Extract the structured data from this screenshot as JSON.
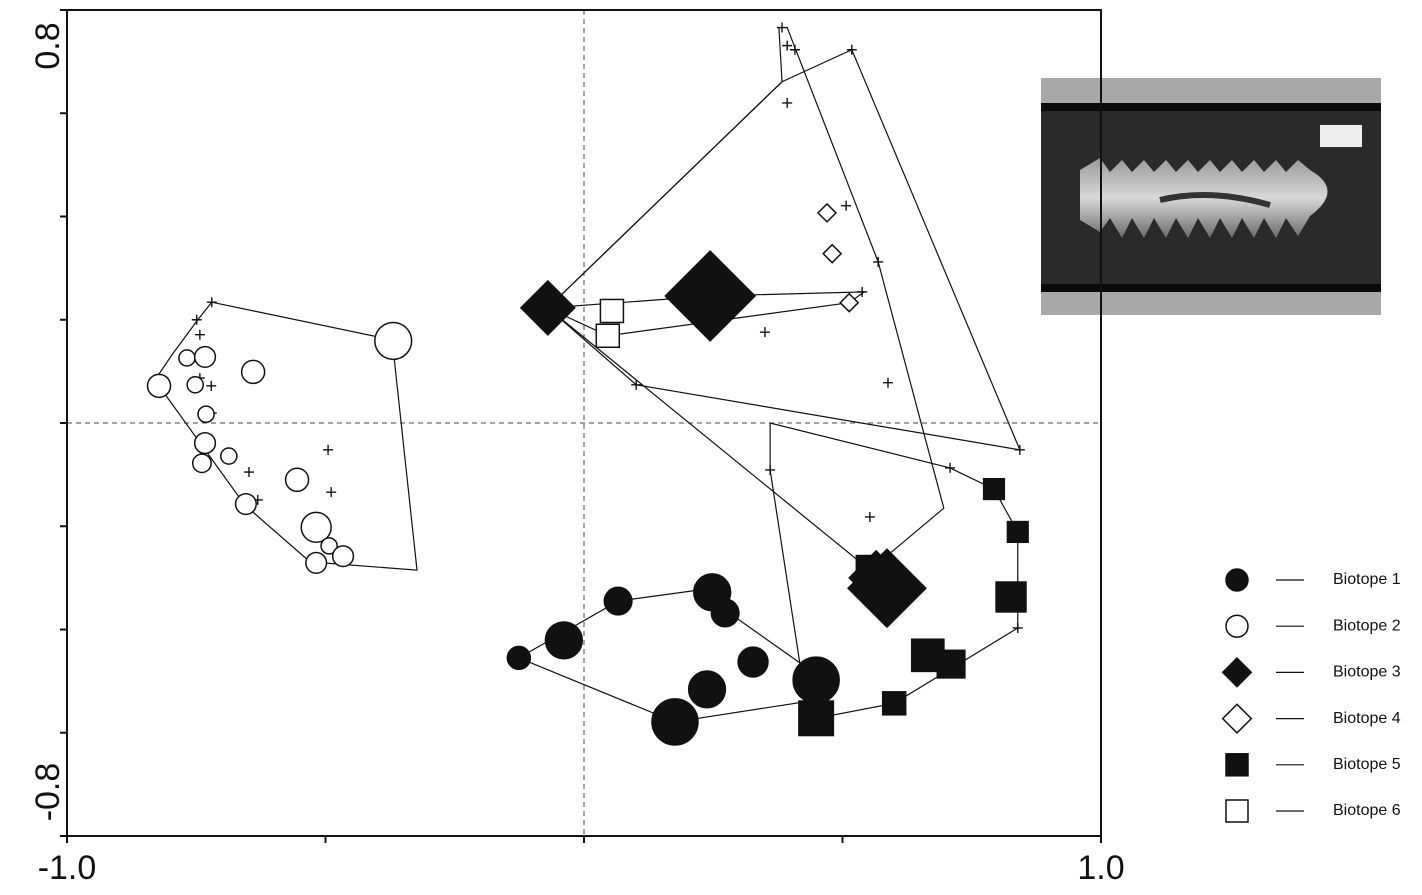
{
  "chart_data": {
    "type": "scatter",
    "xlim": [
      -1.0,
      1.0
    ],
    "ylim": [
      -0.8,
      0.8
    ],
    "xticks": [
      {
        "value": -1.0,
        "label": "-1.0"
      },
      {
        "value": 1.0,
        "label": "1.0"
      }
    ],
    "yticks": [
      {
        "value": -0.8,
        "label": "-0.8"
      },
      {
        "value": 0.8,
        "label": "0.8"
      }
    ],
    "xminorticks": [
      -0.5,
      0,
      0.5
    ],
    "yminorticks": [
      -0.6,
      -0.4,
      -0.2,
      0,
      0.2,
      0.4,
      0.6
    ],
    "zero_lines": true,
    "color": "#111111",
    "series": [
      {
        "name": "Biotope 1",
        "marker": "circle",
        "filled": true,
        "x": [
          -0.126,
          -0.039,
          0.066,
          0.248,
          0.273,
          0.327,
          0.238,
          0.176,
          0.449
        ],
        "y": [
          -0.455,
          -0.421,
          -0.345,
          -0.328,
          -0.368,
          -0.463,
          -0.516,
          -0.579,
          -0.498
        ],
        "sizes": [
          5,
          8,
          6,
          8,
          6,
          6.5,
          8,
          10,
          10
        ]
      },
      {
        "name": "Biotope 2",
        "marker": "circle",
        "filled": false,
        "x": [
          -0.822,
          -0.768,
          -0.733,
          -0.752,
          -0.731,
          -0.64,
          -0.733,
          -0.687,
          -0.739,
          -0.555,
          -0.654,
          -0.518,
          -0.493,
          -0.466,
          -0.518,
          -0.369
        ],
        "y": [
          0.072,
          0.126,
          0.128,
          0.074,
          0.017,
          0.099,
          -0.039,
          -0.064,
          -0.078,
          -0.11,
          -0.157,
          -0.202,
          -0.238,
          -0.258,
          -0.271,
          0.159
        ],
        "sizes": [
          5,
          3.5,
          4.5,
          3.5,
          3.5,
          5,
          4.5,
          3.5,
          4,
          5,
          4.5,
          6.5,
          3.5,
          4.5,
          4.5,
          8
        ]
      },
      {
        "name": "Biotope 3",
        "marker": "diamond",
        "filled": true,
        "x": [
          -0.07,
          0.244,
          0.586,
          0.565
        ],
        "y": [
          0.223,
          0.246,
          -0.32,
          -0.3
        ],
        "sizes": [
          9,
          15,
          13,
          9
        ]
      },
      {
        "name": "Biotope 4",
        "marker": "diamond",
        "filled": false,
        "x": [
          0.47,
          0.48,
          0.513
        ],
        "y": [
          0.407,
          0.328,
          0.233
        ],
        "sizes": [
          3,
          3,
          3
        ]
      },
      {
        "name": "Biotope 5",
        "marker": "square",
        "filled": true,
        "x": [
          0.793,
          0.839,
          0.826,
          0.549,
          0.665,
          0.71,
          0.6,
          0.449
        ],
        "y": [
          -0.128,
          -0.211,
          -0.337,
          -0.279,
          -0.45,
          -0.467,
          -0.543,
          -0.572
        ],
        "sizes": [
          4.5,
          4.5,
          6.5,
          5,
          7,
          6,
          5,
          7.5
        ]
      },
      {
        "name": "Biotope 6",
        "marker": "square",
        "filled": false,
        "x": [
          0.054,
          0.046
        ],
        "y": [
          0.217,
          0.169
        ],
        "sizes": [
          5,
          5
        ]
      }
    ],
    "species": {
      "x": [
        -0.749,
        -0.743,
        -0.772,
        -0.729,
        -0.743,
        -0.721,
        -0.72,
        -0.648,
        -0.631,
        -0.495,
        -0.489,
        0.101,
        0.383,
        0.393,
        0.408,
        0.393,
        0.507,
        0.569,
        0.538,
        0.35,
        0.588,
        0.553,
        0.36,
        0.708,
        0.839,
        0.843,
        0.518,
        -0.72
      ],
      "y": [
        0.2,
        0.171,
        0.132,
        0.132,
        0.087,
        0.072,
        0.019,
        -0.095,
        -0.149,
        -0.052,
        -0.134,
        0.074,
        0.766,
        0.731,
        0.723,
        0.62,
        0.421,
        0.312,
        0.254,
        0.176,
        0.078,
        -0.182,
        -0.091,
        -0.087,
        -0.397,
        -0.052,
        0.723,
        0.234
      ]
    },
    "hulls": [
      {
        "x": [
          -0.126,
          0.066,
          0.219,
          0.418,
          0.447,
          0.176
        ],
        "y": [
          -0.455,
          -0.345,
          -0.324,
          -0.465,
          -0.537,
          -0.579
        ]
      },
      {
        "x": [
          -0.72,
          -0.371,
          -0.323,
          -0.53,
          -0.656,
          -0.83,
          -0.797,
          -0.747
        ],
        "y": [
          0.234,
          0.161,
          -0.285,
          -0.269,
          -0.159,
          0.083,
          0.132,
          0.2
        ]
      },
      {
        "x": [
          -0.07,
          0.383,
          0.518,
          0.843,
          0.101
        ],
        "y": [
          0.223,
          0.661,
          0.723,
          -0.052,
          0.074
        ]
      },
      {
        "x": [
          -0.07,
          0.553,
          0.696,
          0.569,
          0.393,
          0.377,
          0.383
        ],
        "y": [
          0.223,
          -0.285,
          -0.165,
          0.312,
          0.766,
          0.766,
          0.661
        ]
      },
      {
        "x": [
          -0.07,
          0.244,
          0.542,
          0.513,
          0.046
        ],
        "y": [
          0.223,
          0.246,
          0.254,
          0.233,
          0.169
        ]
      },
      {
        "x": [
          0.36,
          0.36,
          0.418,
          0.449,
          0.6,
          0.839,
          0.839,
          0.793,
          0.708
        ],
        "y": [
          0.0,
          -0.091,
          -0.469,
          -0.572,
          -0.543,
          -0.397,
          -0.211,
          -0.128,
          -0.087
        ]
      }
    ]
  }
}
